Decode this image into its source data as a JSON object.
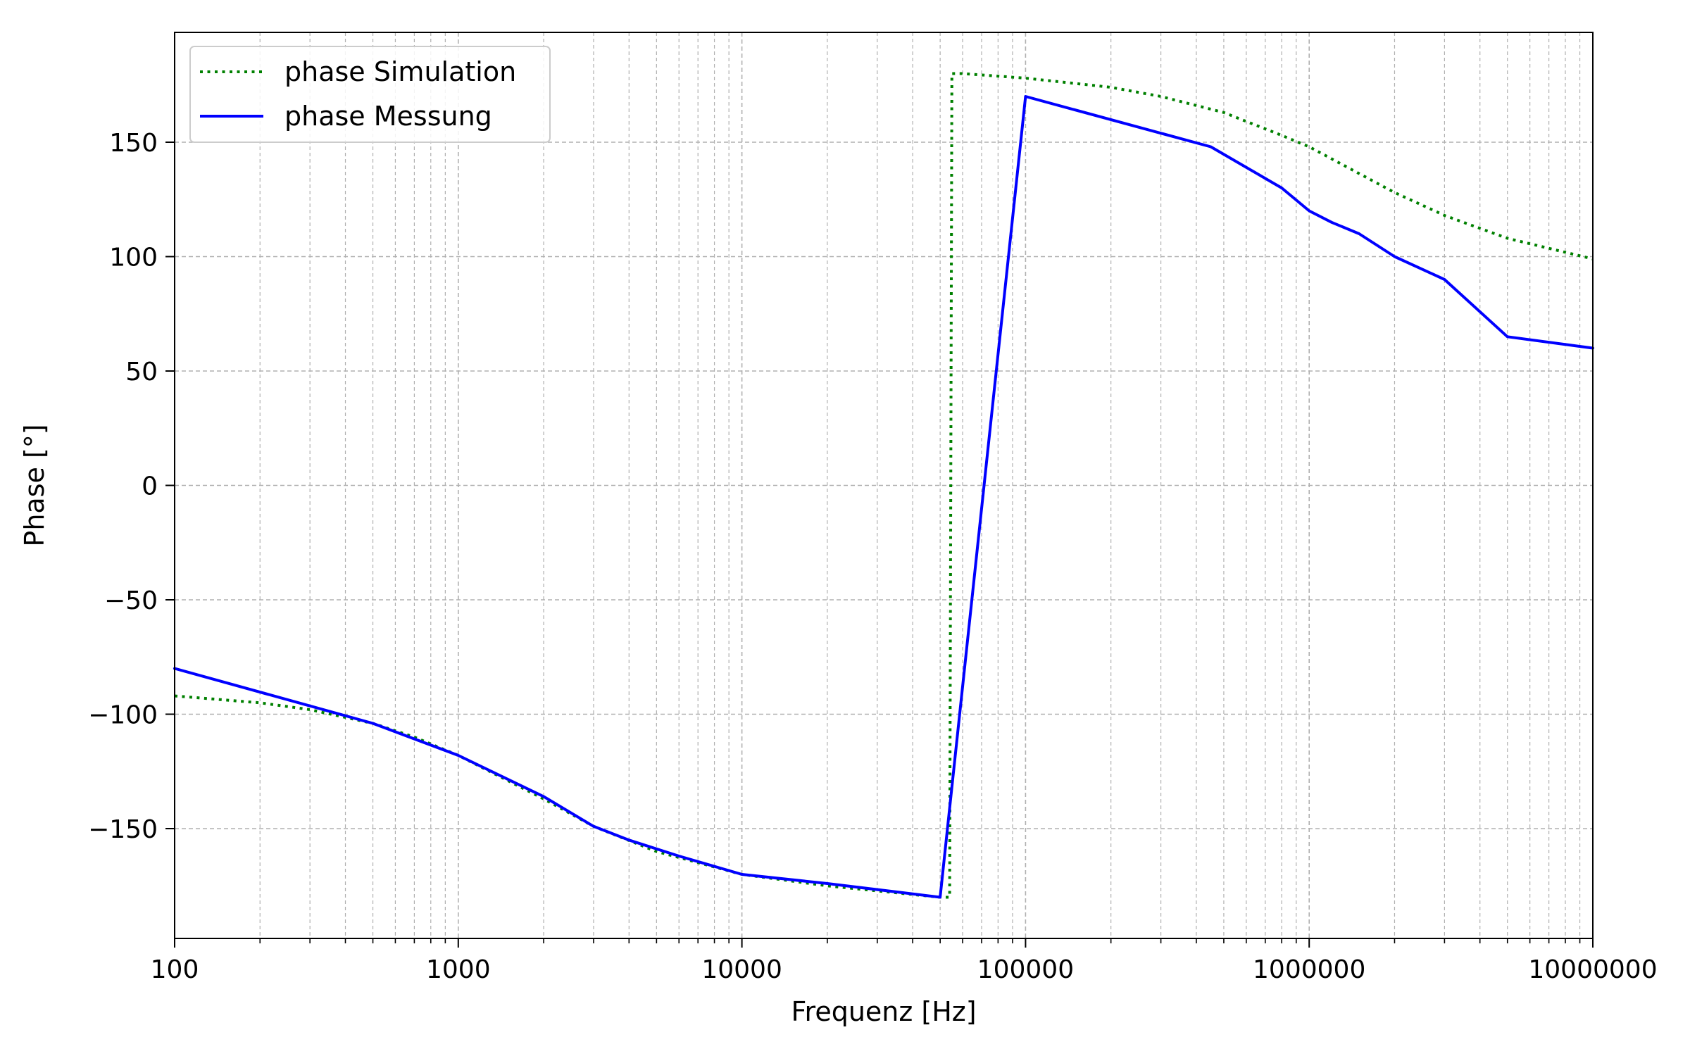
{
  "chart_data": {
    "type": "line",
    "xlabel": "Frequenz [Hz]",
    "ylabel": "Phase [°]",
    "x_scale": "log",
    "xlim": [
      100,
      10000000
    ],
    "ylim": [
      -198,
      198
    ],
    "grid": true,
    "grid_minor": true,
    "legend_placement": "top-left",
    "x_ticks": [
      100,
      1000,
      10000,
      100000,
      1000000,
      10000000
    ],
    "x_tick_labels": [
      "100",
      "1000",
      "10000",
      "100000",
      "1000000",
      "10000000"
    ],
    "y_ticks": [
      -150,
      -100,
      -50,
      0,
      50,
      100,
      150
    ],
    "y_tick_labels": [
      "−150",
      "−100",
      "−50",
      "0",
      "50",
      "100",
      "150"
    ],
    "series": [
      {
        "name": "phase Simulation",
        "color": "#008000",
        "style": "dotted",
        "x": [
          100,
          200,
          300,
          500,
          700,
          1000,
          2000,
          3000,
          5000,
          10000,
          20000,
          50000,
          54000,
          55000,
          60000,
          100000,
          200000,
          300000,
          500000,
          800000,
          1000000,
          2000000,
          3000000,
          5000000,
          10000000
        ],
        "y": [
          -92,
          -95,
          -98,
          -104,
          -110,
          -118,
          -137,
          -149,
          -160,
          -170,
          -175,
          -180,
          -180,
          180,
          180,
          178,
          174,
          170,
          163,
          153,
          148,
          128,
          118,
          108,
          99
        ]
      },
      {
        "name": "phase Messung",
        "color": "#0000ff",
        "style": "solid",
        "x": [
          100,
          500,
          1000,
          2000,
          3000,
          4000,
          6000,
          10000,
          20000,
          50000,
          100000,
          450000,
          800000,
          1000000,
          1200000,
          1500000,
          2000000,
          3000000,
          5000000,
          10000000
        ],
        "y": [
          -80,
          -104,
          -118,
          -136,
          -149,
          -155,
          -162,
          -170,
          -174,
          -180,
          170,
          148,
          130,
          120,
          115,
          110,
          100,
          90,
          65,
          60
        ]
      }
    ]
  }
}
